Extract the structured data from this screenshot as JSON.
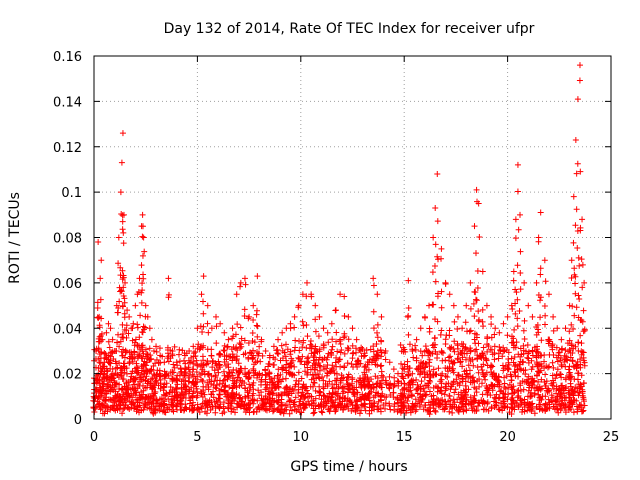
{
  "chart_data": {
    "type": "scatter",
    "title": "Day 132 of 2014, Rate Of TEC Index for receiver ufpr",
    "xlabel": "GPS time / hours",
    "ylabel": "ROTI / TECUs",
    "xlim": [
      0,
      25
    ],
    "ylim": [
      0,
      0.16
    ],
    "x_ticks": [
      0,
      5,
      10,
      15,
      20,
      25
    ],
    "x_tick_labels": [
      "0",
      "5",
      "10",
      "15",
      "20",
      "25"
    ],
    "y_ticks": [
      0,
      0.02,
      0.04,
      0.06,
      0.08,
      0.1,
      0.12,
      0.14,
      0.16
    ],
    "y_tick_labels": [
      "0",
      "0.02",
      "0.04",
      "0.06",
      "0.08",
      "0.1",
      "0.12",
      "0.14",
      "0.16"
    ],
    "grid": true,
    "marker": "+",
    "color": "#ff0000",
    "series": [
      {
        "name": "ROTI",
        "x": [
          0.0,
          0.1,
          0.2,
          0.25,
          0.3,
          0.35,
          0.4,
          0.5,
          0.6,
          0.7,
          0.8,
          0.9,
          1.0,
          1.1,
          1.2,
          1.3,
          1.35,
          1.4,
          1.45,
          1.5,
          1.6,
          1.7,
          1.8,
          1.9,
          2.0,
          2.1,
          2.2,
          2.3,
          2.35,
          2.4,
          2.5,
          2.6,
          2.7,
          2.8,
          2.9,
          3.0,
          3.2,
          3.4,
          3.6,
          3.8,
          4.0,
          4.2,
          4.4,
          4.6,
          4.8,
          5.0,
          5.2,
          5.3,
          5.5,
          5.7,
          5.9,
          6.1,
          6.3,
          6.5,
          6.7,
          6.9,
          7.1,
          7.3,
          7.5,
          7.7,
          7.9,
          8.1,
          8.3,
          8.5,
          8.7,
          8.9,
          9.1,
          9.3,
          9.5,
          9.7,
          9.9,
          10.1,
          10.3,
          10.5,
          10.7,
          10.9,
          11.1,
          11.3,
          11.5,
          11.7,
          11.9,
          12.1,
          12.3,
          12.5,
          12.7,
          12.9,
          13.1,
          13.3,
          13.5,
          13.7,
          13.9,
          14.1,
          14.3,
          14.5,
          14.7,
          14.9,
          15.0,
          15.2,
          15.4,
          15.6,
          15.8,
          16.0,
          16.2,
          16.4,
          16.5,
          16.6,
          16.8,
          17.0,
          17.2,
          17.4,
          17.6,
          17.8,
          18.0,
          18.2,
          18.4,
          18.5,
          18.6,
          18.8,
          19.0,
          19.2,
          19.4,
          19.6,
          19.8,
          20.0,
          20.2,
          20.3,
          20.4,
          20.5,
          20.6,
          20.8,
          21.0,
          21.2,
          21.4,
          21.5,
          21.6,
          21.8,
          22.0,
          22.2,
          22.4,
          22.6,
          22.8,
          23.0,
          23.1,
          23.2,
          23.3,
          23.4,
          23.5,
          23.6,
          23.7
        ],
        "y": [
          0.018,
          0.03,
          0.078,
          0.045,
          0.062,
          0.07,
          0.035,
          0.025,
          0.038,
          0.042,
          0.04,
          0.035,
          0.03,
          0.05,
          0.08,
          0.1,
          0.113,
          0.126,
          0.09,
          0.06,
          0.048,
          0.045,
          0.04,
          0.042,
          0.05,
          0.055,
          0.062,
          0.085,
          0.09,
          0.08,
          0.05,
          0.045,
          0.04,
          0.035,
          0.03,
          0.032,
          0.028,
          0.025,
          0.062,
          0.03,
          0.025,
          0.022,
          0.028,
          0.03,
          0.032,
          0.04,
          0.055,
          0.063,
          0.05,
          0.04,
          0.045,
          0.042,
          0.038,
          0.035,
          0.04,
          0.055,
          0.06,
          0.062,
          0.045,
          0.05,
          0.063,
          0.035,
          0.03,
          0.028,
          0.032,
          0.035,
          0.038,
          0.04,
          0.042,
          0.045,
          0.05,
          0.055,
          0.06,
          0.055,
          0.05,
          0.045,
          0.04,
          0.038,
          0.042,
          0.048,
          0.055,
          0.054,
          0.045,
          0.04,
          0.035,
          0.03,
          0.028,
          0.025,
          0.062,
          0.055,
          0.045,
          0.03,
          0.025,
          0.022,
          0.02,
          0.02,
          0.022,
          0.061,
          0.03,
          0.035,
          0.04,
          0.045,
          0.05,
          0.08,
          0.093,
          0.108,
          0.075,
          0.06,
          0.055,
          0.05,
          0.045,
          0.04,
          0.05,
          0.06,
          0.085,
          0.101,
          0.095,
          0.065,
          0.05,
          0.045,
          0.04,
          0.038,
          0.042,
          0.045,
          0.05,
          0.065,
          0.088,
          0.112,
          0.09,
          0.06,
          0.05,
          0.045,
          0.06,
          0.08,
          0.091,
          0.07,
          0.055,
          0.045,
          0.04,
          0.035,
          0.04,
          0.05,
          0.07,
          0.098,
          0.123,
          0.141,
          0.156,
          0.088,
          0.06
        ],
        "noise_band": {
          "x_ranges": [
            [
              0,
              14.0
            ],
            [
              14.8,
              23.7
            ]
          ],
          "y_min": 0.002,
          "y_typical_max": 0.03
        }
      }
    ]
  }
}
